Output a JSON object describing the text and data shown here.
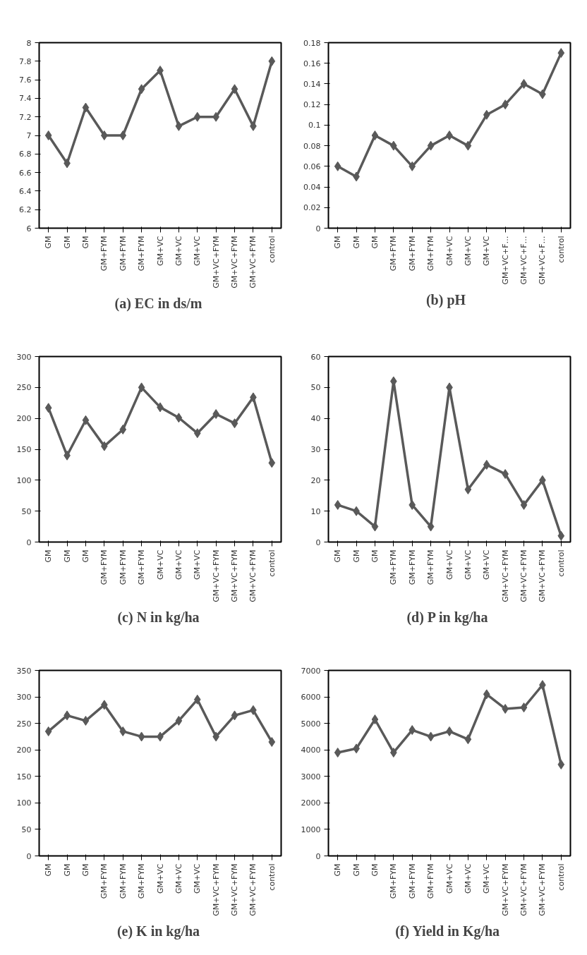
{
  "chart_data": [
    {
      "type": "line",
      "title": "(a)  EC in ds/m",
      "categories": [
        "GM",
        "GM",
        "GM",
        "GM+FYM",
        "GM+FYM",
        "GM+FYM",
        "GM+VC",
        "GM+VC",
        "GM+VC",
        "GM+VC+FYM",
        "GM+VC+FYM",
        "GM+VC+FYM",
        "control"
      ],
      "values": [
        7,
        6.7,
        7.3,
        7,
        7,
        7.5,
        7.7,
        7.1,
        7.2,
        7.2,
        7.5,
        7.1,
        7.8
      ],
      "color": "#595959",
      "ylim": [
        6,
        8
      ],
      "yticks": [
        6,
        6.2,
        6.4,
        6.6,
        6.8,
        7,
        7.2,
        7.4,
        7.6,
        7.8,
        8
      ],
      "marker": "diamond",
      "line_style": "solid",
      "grid": false
    },
    {
      "type": "line",
      "title": "(b)   pH",
      "categories": [
        "GM",
        "GM",
        "GM",
        "GM+FYM",
        "GM+FYM",
        "GM+FYM",
        "GM+VC",
        "GM+VC",
        "GM+VC",
        "GM+VC+F…",
        "GM+VC+F…",
        "GM+VC+F…",
        "control"
      ],
      "values": [
        0.06,
        0.05,
        0.09,
        0.08,
        0.06,
        0.08,
        0.09,
        0.08,
        0.11,
        0.12,
        0.14,
        0.13,
        0.17
      ],
      "color": "#595959",
      "ylim": [
        0,
        0.18
      ],
      "yticks": [
        0,
        0.02,
        0.04,
        0.06,
        0.08,
        0.1,
        0.12,
        0.14,
        0.16,
        0.18
      ],
      "marker": "diamond",
      "line_style": "solid",
      "grid": false
    },
    {
      "type": "line",
      "title": "(c)  N in kg/ha",
      "categories": [
        "GM",
        "GM",
        "GM",
        "GM+FYM",
        "GM+FYM",
        "GM+FYM",
        "GM+VC",
        "GM+VC",
        "GM+VC",
        "GM+VC+FYM",
        "GM+VC+FYM",
        "GM+VC+FYM",
        "control"
      ],
      "values": [
        217,
        140,
        197,
        155,
        182,
        250,
        218,
        201,
        176,
        207,
        192,
        234,
        128
      ],
      "color": "#595959",
      "ylim": [
        0,
        300
      ],
      "yticks": [
        0,
        50,
        100,
        150,
        200,
        250,
        300
      ],
      "marker": "diamond",
      "line_style": "solid",
      "grid": false
    },
    {
      "type": "line",
      "title": "(d)  P in kg/ha",
      "categories": [
        "GM",
        "GM",
        "GM",
        "GM+FYM",
        "GM+FYM",
        "GM+FYM",
        "GM+VC",
        "GM+VC",
        "GM+VC",
        "GM+VC+FYM",
        "GM+VC+FYM",
        "GM+VC+FYM",
        "control"
      ],
      "values": [
        12,
        10,
        5,
        52,
        12,
        5,
        50,
        17,
        25,
        22,
        12,
        20,
        2
      ],
      "color": "#595959",
      "ylim": [
        0,
        60
      ],
      "yticks": [
        0,
        10,
        20,
        30,
        40,
        50,
        60
      ],
      "marker": "diamond",
      "line_style": "solid",
      "grid": false
    },
    {
      "type": "line",
      "title": "(e)  K in kg/ha",
      "categories": [
        "GM",
        "GM",
        "GM",
        "GM+FYM",
        "GM+FYM",
        "GM+FYM",
        "GM+VC",
        "GM+VC",
        "GM+VC",
        "GM+VC+FYM",
        "GM+VC+FYM",
        "GM+VC+FYM",
        "control"
      ],
      "values": [
        235,
        265,
        255,
        285,
        235,
        225,
        225,
        255,
        295,
        225,
        265,
        275,
        215
      ],
      "color": "#595959",
      "ylim": [
        0,
        350
      ],
      "yticks": [
        0,
        50,
        100,
        150,
        200,
        250,
        300,
        350
      ],
      "marker": "diamond",
      "line_style": "solid",
      "grid": false
    },
    {
      "type": "line",
      "title": "(f)  Yield in Kg/ha",
      "categories": [
        "GM",
        "GM",
        "GM",
        "GM+FYM",
        "GM+FYM",
        "GM+FYM",
        "GM+VC",
        "GM+VC",
        "GM+VC",
        "GM+VC+FYM",
        "GM+VC+FYM",
        "GM+VC+FYM",
        "control"
      ],
      "values": [
        3900,
        4050,
        5150,
        3900,
        4750,
        4500,
        4700,
        4400,
        6100,
        5550,
        5600,
        6450,
        3450
      ],
      "color": "#595959",
      "ylim": [
        0,
        7000
      ],
      "yticks": [
        0,
        1000,
        2000,
        3000,
        4000,
        5000,
        6000,
        7000
      ],
      "marker": "diamond",
      "line_style": "solid",
      "grid": false
    }
  ]
}
